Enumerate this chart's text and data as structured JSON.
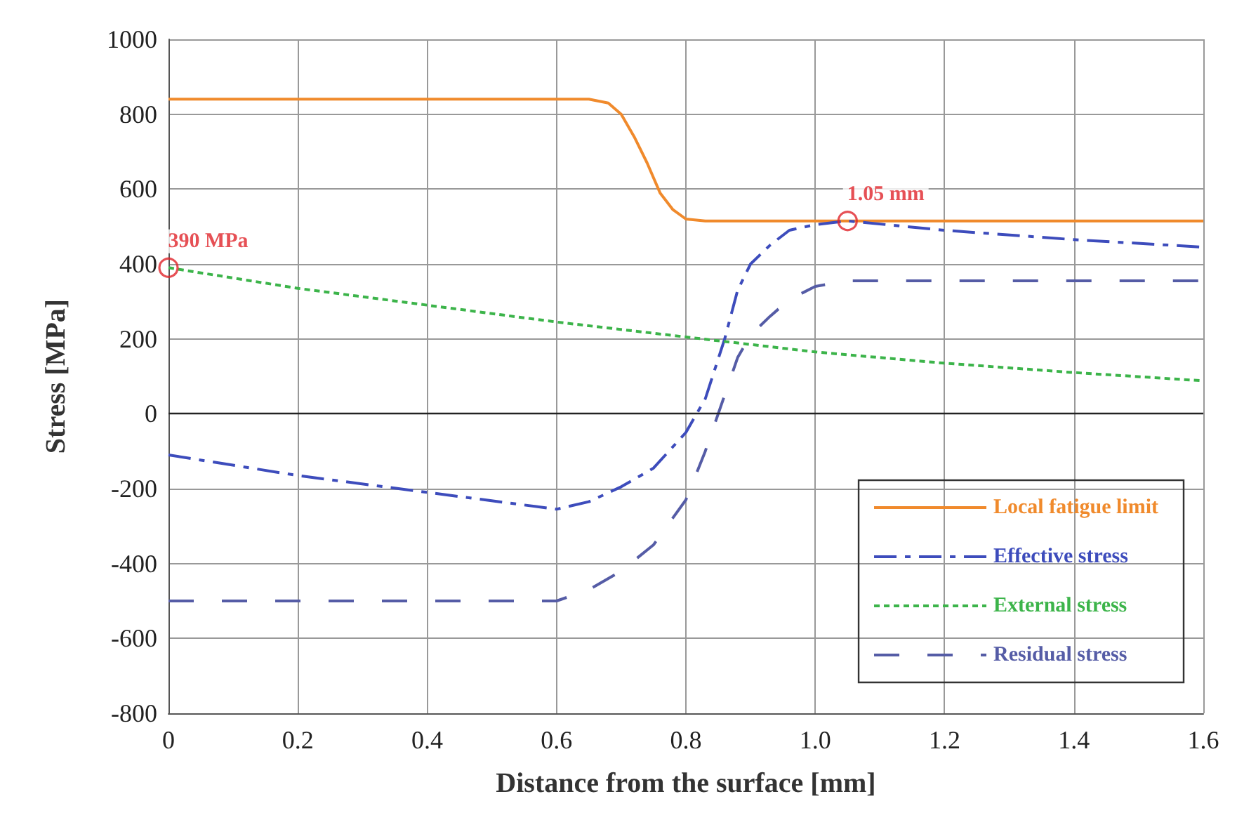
{
  "chart_data": {
    "type": "line",
    "xlabel": "Distance from the surface [mm]",
    "ylabel": "Stress [MPa]",
    "xlim": [
      0,
      1.6
    ],
    "xticks": [
      0,
      0.2,
      0.4,
      0.6,
      0.8,
      {
        "value": 1,
        "label": "1.0"
      },
      1.2,
      1.4,
      1.6
    ],
    "ylim": [
      -800,
      1000
    ],
    "yticks": [
      -800,
      -600,
      -400,
      -200,
      0,
      200,
      400,
      600,
      800,
      1000
    ],
    "grid": true,
    "legend": "bottom right",
    "marker": "none",
    "series": [
      {
        "name": "Local fatigue limit",
        "color": "#f08a2c",
        "line_style": "solid",
        "x": [
          0,
          0.65,
          0.68,
          0.7,
          0.72,
          0.74,
          0.76,
          0.78,
          0.8,
          0.83,
          1.6
        ],
        "values": [
          840,
          840,
          830,
          800,
          740,
          670,
          590,
          545,
          520,
          515,
          515
        ]
      },
      {
        "name": "Effective stress",
        "color": "#3d4cbc",
        "line_style": "dashed",
        "x": [
          0,
          0.2,
          0.4,
          0.6,
          0.65,
          0.7,
          0.75,
          0.8,
          0.83,
          0.86,
          0.88,
          0.9,
          0.93,
          0.96,
          1.0,
          1.05,
          1.2,
          1.4,
          1.6
        ],
        "values": [
          -110,
          -165,
          -210,
          -255,
          -235,
          -195,
          -145,
          -50,
          40,
          200,
          330,
          400,
          450,
          490,
          505,
          515,
          490,
          465,
          445
        ]
      },
      {
        "name": "External stress",
        "color": "#3cb44a",
        "line_style": "dotted",
        "x": [
          0,
          0.2,
          0.4,
          0.6,
          0.8,
          1.0,
          1.2,
          1.4,
          1.6
        ],
        "values": [
          390,
          335,
          290,
          245,
          205,
          165,
          135,
          110,
          88
        ]
      },
      {
        "name": "Residual stress",
        "color": "#555ca6",
        "line_style": "dashed",
        "x": [
          0,
          0.6,
          0.65,
          0.7,
          0.75,
          0.8,
          0.83,
          0.86,
          0.88,
          0.9,
          0.93,
          0.96,
          1.0,
          1.05,
          1.6
        ],
        "values": [
          -500,
          -500,
          -470,
          -420,
          -350,
          -230,
          -100,
          50,
          150,
          210,
          260,
          305,
          340,
          355,
          355
        ]
      }
    ],
    "annotations": [
      {
        "text": "390 MPa",
        "x": 0,
        "y": 390
      },
      {
        "text": "1.05 mm",
        "x": 1.05,
        "y": 515
      }
    ]
  }
}
